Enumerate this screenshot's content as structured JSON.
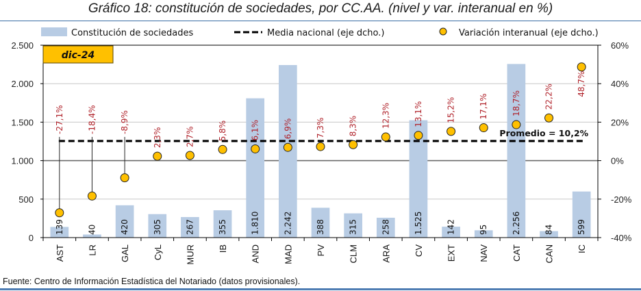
{
  "page": {
    "title": "Gráfico 18: constitución de sociedades, por CC.AA. (nivel y var. interanual en %)",
    "footer": "Fuente: Centro de Información Estadística del Notariado (datos provisionales)."
  },
  "chart_data": {
    "type": "bar",
    "title": "Gráfico 18: constitución de sociedades, por CC.AA. (nivel y var. interanual en %)",
    "period_badge": "dic-24",
    "categories": [
      "AST",
      "LR",
      "GAL",
      "CyL",
      "MUR",
      "IB",
      "AND",
      "MAD",
      "PV",
      "CLM",
      "ARA",
      "CV",
      "EXT",
      "NAV",
      "CAT",
      "CAN",
      "IC"
    ],
    "series": [
      {
        "name": "Constitución de sociedades",
        "type": "bar",
        "axis": "left",
        "color": "#b8cce4",
        "values": [
          139,
          40,
          420,
          305,
          267,
          355,
          1810,
          2242,
          388,
          315,
          258,
          1525,
          142,
          95,
          2256,
          84,
          599
        ],
        "labels": [
          "139",
          "40",
          "420",
          "305",
          "267",
          "355",
          "1.810",
          "2.242",
          "388",
          "315",
          "258",
          "1.525",
          "142",
          "95",
          "2.256",
          "84",
          "599"
        ]
      },
      {
        "name": "Media nacional (eje dcho.)",
        "type": "line",
        "style": "dashed",
        "axis": "right",
        "color": "#000000",
        "value": 10.2,
        "annotation": "Promedio = 10,2%"
      },
      {
        "name": "Variación interanual (eje dcho.)",
        "type": "scatter",
        "axis": "right",
        "color": "#ffc000",
        "values": [
          -27.1,
          -18.4,
          -8.9,
          2.3,
          2.7,
          5.8,
          6.1,
          6.9,
          7.3,
          8.3,
          12.3,
          13.1,
          15.2,
          17.1,
          18.7,
          22.2,
          48.7
        ],
        "labels": [
          "-27,1%",
          "-18,4%",
          "-8,9%",
          "2,3%",
          "2,7%",
          "5,8%",
          "6,1%",
          "6,9%",
          "7,3%",
          "8,3%",
          "12,3%",
          "13,1%",
          "15,2%",
          "17,1%",
          "18,7%",
          "22,2%",
          "48,7%"
        ]
      }
    ],
    "y_left": {
      "min": 0,
      "max": 2500,
      "ticks": [
        0,
        500,
        1000,
        1500,
        2000,
        2500
      ],
      "tick_labels": [
        "0",
        "500",
        "1.000",
        "1.500",
        "2.000",
        "2.500"
      ]
    },
    "y_right": {
      "min": -40,
      "max": 60,
      "ticks": [
        -40,
        -20,
        0,
        20,
        40,
        60
      ],
      "tick_labels": [
        "-40%",
        "-20%",
        "0%",
        "20%",
        "40%",
        "60%"
      ]
    },
    "xlabel": "",
    "ylabel": "",
    "grid": true,
    "legend_position": "top"
  }
}
